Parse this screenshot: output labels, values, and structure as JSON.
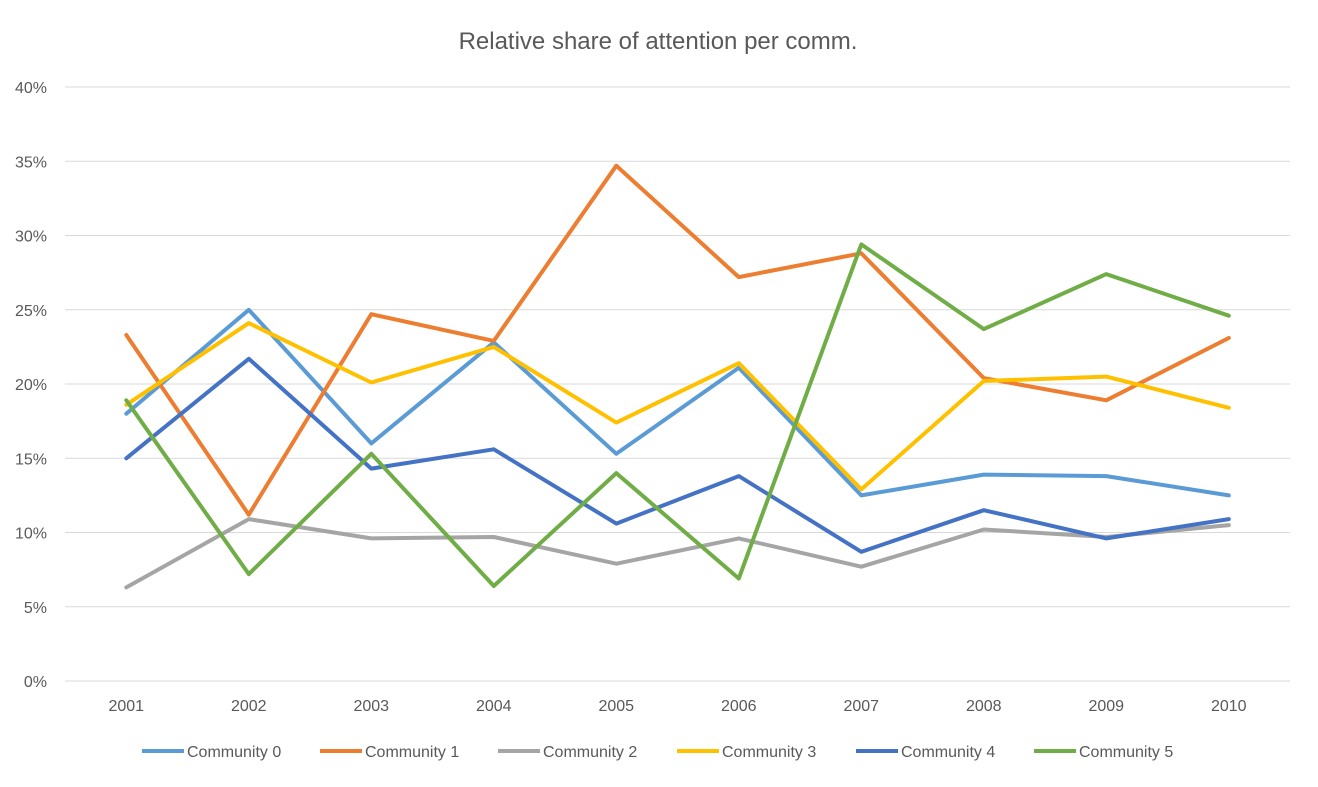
{
  "chart_data": {
    "type": "line",
    "title": "Relative share of attention per comm.",
    "xlabel": "",
    "ylabel": "",
    "categories": [
      "2001",
      "2002",
      "2003",
      "2004",
      "2005",
      "2006",
      "2007",
      "2008",
      "2009",
      "2010"
    ],
    "ylim": [
      0,
      40
    ],
    "yticks": [
      0,
      5,
      10,
      15,
      20,
      25,
      30,
      35,
      40
    ],
    "ytick_labels": [
      "0%",
      "5%",
      "10%",
      "15%",
      "20%",
      "25%",
      "30%",
      "35%",
      "40%"
    ],
    "grid": true,
    "legend_position": "bottom",
    "series": [
      {
        "name": "Community 0",
        "color": "#5B9BD5",
        "values": [
          18.0,
          25.0,
          16.0,
          22.8,
          15.3,
          21.1,
          12.5,
          13.9,
          13.8,
          12.5
        ]
      },
      {
        "name": "Community 1",
        "color": "#ED7D31",
        "values": [
          23.3,
          11.2,
          24.7,
          22.9,
          34.7,
          27.2,
          28.8,
          20.4,
          18.9,
          23.1
        ]
      },
      {
        "name": "Community 2",
        "color": "#A5A5A5",
        "values": [
          6.3,
          10.9,
          9.6,
          9.7,
          7.9,
          9.6,
          7.7,
          10.2,
          9.7,
          10.5
        ]
      },
      {
        "name": "Community 3",
        "color": "#FFC000",
        "values": [
          18.6,
          24.1,
          20.1,
          22.5,
          17.4,
          21.4,
          12.9,
          20.2,
          20.5,
          18.4
        ]
      },
      {
        "name": "Community 4",
        "color": "#4472C4",
        "values": [
          15.0,
          21.7,
          14.3,
          15.6,
          10.6,
          13.8,
          8.7,
          11.5,
          9.6,
          10.9
        ]
      },
      {
        "name": "Community 5",
        "color": "#70AD47",
        "values": [
          18.9,
          7.2,
          15.3,
          6.4,
          14.0,
          6.9,
          29.4,
          23.7,
          27.4,
          24.6
        ]
      }
    ]
  }
}
